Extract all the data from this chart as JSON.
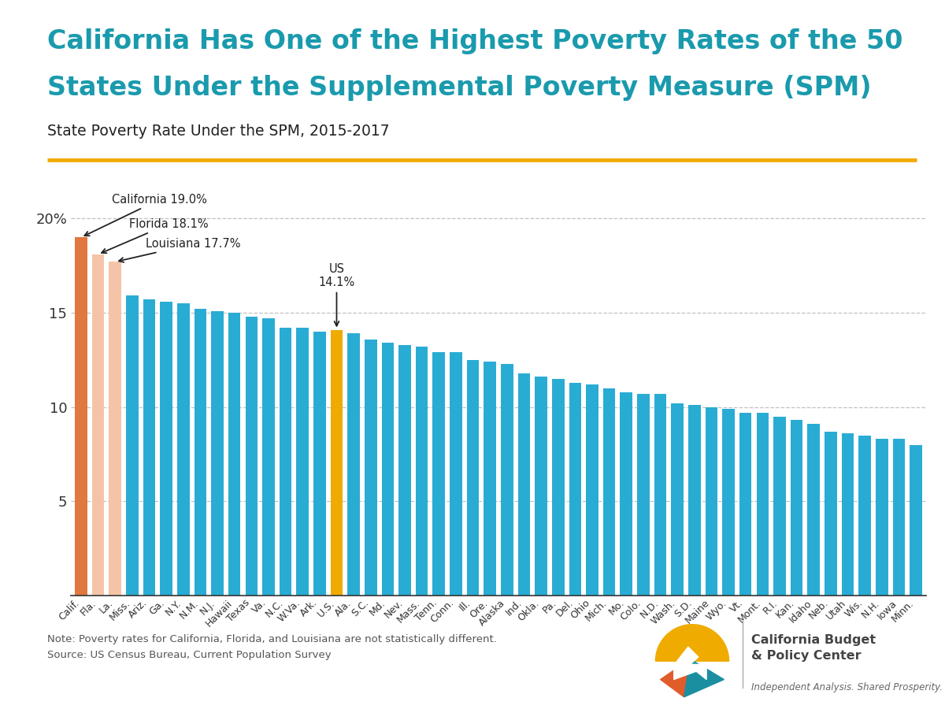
{
  "title_line1": "California Has One of the Highest Poverty Rates of the 50",
  "title_line2": "States Under the Supplemental Poverty Measure (SPM)",
  "subtitle": "State Poverty Rate Under the SPM, 2015-2017",
  "title_color": "#1a9aad",
  "subtitle_color": "#222222",
  "separator_color": "#f0ab00",
  "background_color": "#ffffff",
  "labels": [
    "Calif.",
    "Fla.",
    "La.",
    "Miss.",
    "Ariz.",
    "Ga.",
    "N.Y.",
    "N.M.",
    "N.J.",
    "Hawaii",
    "Texas",
    "Va.",
    "N.C.",
    "W.Va.",
    "Ark.",
    "U.S.",
    "Ala.",
    "S.C.",
    "Md.",
    "Nev.",
    "Mass.",
    "Tenn.",
    "Conn.",
    "Ill.",
    "Ore.",
    "Alaska",
    "Ind.",
    "Okla.",
    "Pa.",
    "Del.",
    "Ohio",
    "Mich.",
    "Mo.",
    "Colo.",
    "N.D.",
    "Wash.",
    "S.D.",
    "Maine",
    "Wyo.",
    "Vt.",
    "Mont.",
    "R.I.",
    "Kan.",
    "Idaho",
    "Neb.",
    "Utah",
    "Wis.",
    "N.H.",
    "Iowa",
    "Minn."
  ],
  "values": [
    19.0,
    18.1,
    17.7,
    15.9,
    15.7,
    15.6,
    15.5,
    15.2,
    15.1,
    15.0,
    14.8,
    14.7,
    14.2,
    14.2,
    14.0,
    14.1,
    13.9,
    13.6,
    13.4,
    13.3,
    13.2,
    12.9,
    12.9,
    12.5,
    12.4,
    12.3,
    11.8,
    11.6,
    11.5,
    11.3,
    11.2,
    11.0,
    10.8,
    10.7,
    10.7,
    10.2,
    10.1,
    10.0,
    9.9,
    9.7,
    9.7,
    9.5,
    9.3,
    9.1,
    8.7,
    8.6,
    8.5,
    8.3,
    8.3,
    8.0
  ],
  "bar_colors": [
    "#e07840",
    "#f5c4a8",
    "#f5c4a8",
    "#29acd4",
    "#29acd4",
    "#29acd4",
    "#29acd4",
    "#29acd4",
    "#29acd4",
    "#29acd4",
    "#29acd4",
    "#29acd4",
    "#29acd4",
    "#29acd4",
    "#29acd4",
    "#f0ab00",
    "#29acd4",
    "#29acd4",
    "#29acd4",
    "#29acd4",
    "#29acd4",
    "#29acd4",
    "#29acd4",
    "#29acd4",
    "#29acd4",
    "#29acd4",
    "#29acd4",
    "#29acd4",
    "#29acd4",
    "#29acd4",
    "#29acd4",
    "#29acd4",
    "#29acd4",
    "#29acd4",
    "#29acd4",
    "#29acd4",
    "#29acd4",
    "#29acd4",
    "#29acd4",
    "#29acd4",
    "#29acd4",
    "#29acd4",
    "#29acd4",
    "#29acd4",
    "#29acd4",
    "#29acd4",
    "#29acd4",
    "#29acd4",
    "#29acd4",
    "#29acd4"
  ],
  "ylim": [
    0,
    22
  ],
  "yticks": [
    5,
    10,
    15,
    20
  ],
  "ytick_labels": [
    "5",
    "10",
    "15",
    "20%"
  ],
  "note_text": "Note: Poverty rates for California, Florida, and Louisiana are not statistically different.\nSource: US Census Bureau, Current Population Survey",
  "grid_color": "#bbbbbb",
  "tick_label_color": "#333333",
  "logo_yellow": "#f0ab00",
  "logo_orange": "#e05c2a",
  "logo_teal": "#1a8fa0",
  "logo_text_color": "#555555",
  "logo_text_bold": "#333333"
}
